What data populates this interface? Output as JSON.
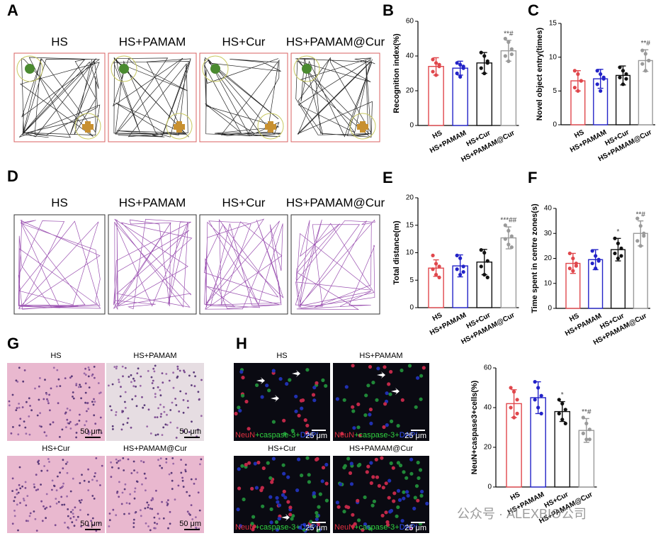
{
  "panels": {
    "labels": [
      "A",
      "B",
      "C",
      "D",
      "E",
      "F",
      "G",
      "H"
    ],
    "groups": [
      "HS",
      "HS+PAMAM",
      "HS+Cur",
      "HS+PAMAM@Cur"
    ],
    "stain": [
      "NeuN",
      "+caspase-3+",
      "DAPI"
    ],
    "scale_he": "50 μm",
    "scale_if": "25 μm",
    "watermark": "公众号 · ALEXBIO公司"
  },
  "chart_data": [
    {
      "type": "bar",
      "ylabel": "Recognition index(%)",
      "categories": [
        "HS",
        "HS+PAMAM",
        "HS+Cur",
        "HS+PAMAM@Cur"
      ],
      "values": [
        34,
        33,
        36,
        43
      ],
      "errors": [
        5,
        4,
        6,
        6
      ],
      "points": [
        [
          38,
          36,
          34,
          31,
          29,
          35
        ],
        [
          36,
          35,
          33,
          30,
          28,
          34
        ],
        [
          42,
          40,
          37,
          33,
          30,
          36
        ],
        [
          50,
          48,
          44,
          40,
          37,
          41
        ]
      ],
      "annotations": [
        null,
        null,
        null,
        "**#"
      ],
      "colors": [
        "#e0474c",
        "#2323c8",
        "#111111",
        "#9a9a9a"
      ],
      "ylim": [
        0,
        60
      ],
      "yticks": [
        0,
        20,
        40,
        60
      ]
    },
    {
      "type": "bar",
      "ylabel": "Novel object entry(times)",
      "categories": [
        "HS",
        "HS+PAMAM",
        "HS+Cur",
        "HS+PAMAM@Cur"
      ],
      "values": [
        6.5,
        6.8,
        7.3,
        9.5
      ],
      "errors": [
        1.5,
        1.4,
        1.4,
        1.6
      ],
      "points": [
        [
          8,
          7.5,
          6.5,
          5.5,
          5,
          6.5
        ],
        [
          8,
          7.5,
          6.8,
          6,
          5,
          7
        ],
        [
          8.5,
          8,
          7.5,
          7,
          6,
          6.8
        ],
        [
          11,
          10.5,
          9.5,
          9,
          8,
          9.5
        ]
      ],
      "annotations": [
        null,
        null,
        null,
        "**#"
      ],
      "colors": [
        "#e0474c",
        "#2323c8",
        "#111111",
        "#9a9a9a"
      ],
      "ylim": [
        0,
        15
      ],
      "yticks": [
        0,
        5,
        10,
        15
      ]
    },
    {
      "type": "bar",
      "ylabel": "Total distance(m)",
      "categories": [
        "HS",
        "HS+PAMAM",
        "HS+Cur",
        "HS+PAMAM@Cur"
      ],
      "values": [
        7.2,
        7.6,
        8.3,
        12.7
      ],
      "errors": [
        1.5,
        2,
        2.3,
        2
      ],
      "points": [
        [
          9.5,
          8,
          7.5,
          7,
          6,
          5.5
        ],
        [
          9.5,
          9,
          7.5,
          7,
          6,
          6.5
        ],
        [
          10.5,
          10,
          8.5,
          7.5,
          6,
          5.5
        ],
        [
          15,
          14,
          13,
          12.5,
          11.5,
          11
        ]
      ],
      "annotations": [
        null,
        null,
        null,
        "***##"
      ],
      "colors": [
        "#e0474c",
        "#2323c8",
        "#111111",
        "#9a9a9a"
      ],
      "ylim": [
        0,
        20
      ],
      "yticks": [
        0,
        5,
        10,
        15,
        20
      ]
    },
    {
      "type": "bar",
      "ylabel": "Time spent in centre zones(s)",
      "categories": [
        "HS",
        "HS+PAMAM",
        "HS+Cur",
        "HS+PAMAM@Cur"
      ],
      "values": [
        18,
        19.5,
        23.5,
        30
      ],
      "errors": [
        4,
        4,
        4.5,
        5
      ],
      "points": [
        [
          22,
          20,
          18,
          16,
          15,
          17
        ],
        [
          23,
          21,
          19.5,
          18,
          16,
          19
        ],
        [
          28,
          26,
          24,
          22,
          20,
          21
        ],
        [
          36,
          33,
          30,
          27,
          25,
          29
        ]
      ],
      "annotations": [
        null,
        null,
        "*",
        "**#"
      ],
      "colors": [
        "#e0474c",
        "#2323c8",
        "#111111",
        "#9a9a9a"
      ],
      "ylim": [
        0,
        40
      ],
      "yticks": [
        0,
        10,
        20,
        30,
        40
      ]
    },
    {
      "type": "bar",
      "ylabel": "NeuN+caspase3+cells(%)",
      "categories": [
        "HS",
        "HS+PAMAM",
        "HS+Cur",
        "HS+PAMAM@Cur"
      ],
      "values": [
        42,
        45,
        38,
        28.5
      ],
      "errors": [
        7,
        8,
        5,
        6
      ],
      "points": [
        [
          50,
          48,
          44,
          40,
          35,
          37
        ],
        [
          53,
          50,
          46,
          44,
          40,
          37
        ],
        [
          44,
          42,
          39,
          37,
          34,
          32
        ],
        [
          35,
          32,
          29,
          27,
          24,
          24
        ]
      ],
      "annotations": [
        null,
        null,
        "*",
        "**#"
      ],
      "colors": [
        "#e0474c",
        "#2323c8",
        "#111111",
        "#9a9a9a"
      ],
      "ylim": [
        0,
        60
      ],
      "yticks": [
        0,
        20,
        40,
        60
      ]
    }
  ]
}
